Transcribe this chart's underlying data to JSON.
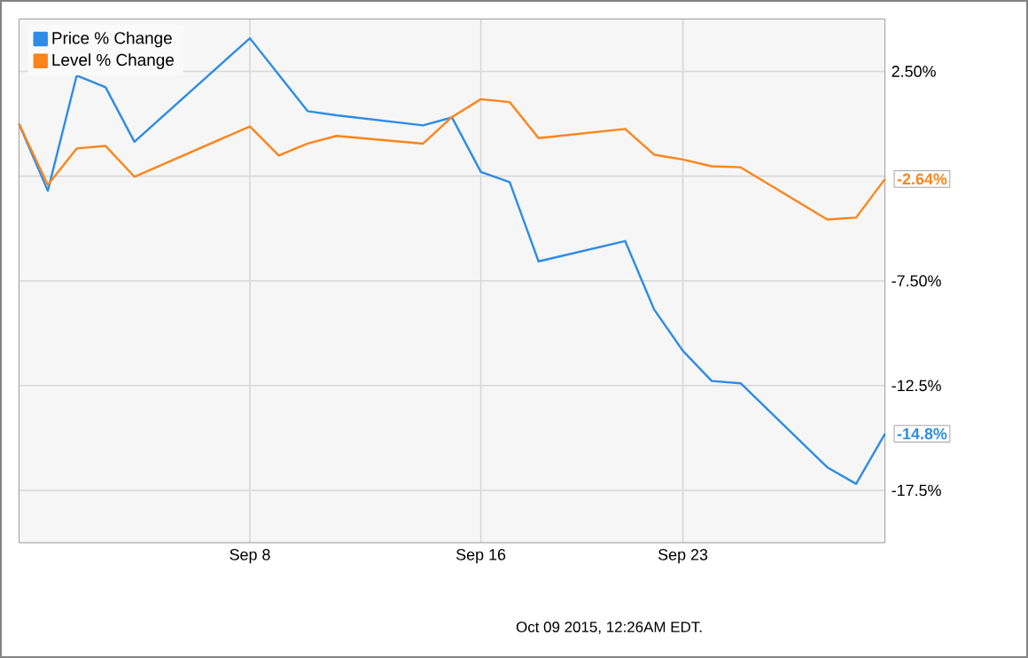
{
  "chart_data": {
    "type": "line",
    "x": [
      "2015-08-31",
      "2015-09-01",
      "2015-09-02",
      "2015-09-03",
      "2015-09-04",
      "2015-09-08",
      "2015-09-09",
      "2015-09-10",
      "2015-09-11",
      "2015-09-14",
      "2015-09-15",
      "2015-09-16",
      "2015-09-17",
      "2015-09-18",
      "2015-09-21",
      "2015-09-22",
      "2015-09-23",
      "2015-09-24",
      "2015-09-25",
      "2015-09-28",
      "2015-09-29",
      "2015-09-30"
    ],
    "series": [
      {
        "name": "Price % Change",
        "color": "#2d8ce6",
        "values": [
          0,
          -3.2,
          2.3,
          1.74,
          -0.86,
          4.08,
          2.34,
          0.6,
          0.4,
          -0.08,
          0.3,
          -2.3,
          -2.79,
          -6.57,
          -5.6,
          -8.86,
          -10.84,
          -12.28,
          -12.39,
          -16.4,
          -17.19,
          -14.8
        ],
        "value_labels": [
          null,
          null,
          null,
          null,
          null,
          null,
          null,
          null,
          null,
          null,
          null,
          null,
          null,
          null,
          null,
          null,
          null,
          null,
          null,
          null,
          null,
          "-14.8%"
        ]
      },
      {
        "name": "Level % Change",
        "color": "#ff8419",
        "values": [
          0,
          -2.92,
          -1.18,
          -1.06,
          -2.53,
          -0.13,
          -1.52,
          -0.95,
          -0.58,
          -0.95,
          0.32,
          1.17,
          1.03,
          -0.69,
          -0.25,
          -1.48,
          -1.71,
          -2.03,
          -2.08,
          -4.57,
          -4.48,
          -2.64
        ],
        "value_labels": [
          null,
          null,
          null,
          null,
          null,
          null,
          null,
          null,
          null,
          null,
          null,
          null,
          null,
          null,
          null,
          null,
          null,
          null,
          null,
          null,
          null,
          "-2.64%"
        ]
      }
    ],
    "xlim": [
      "2015-08-31",
      "2015-09-30"
    ],
    "xticks": [
      {
        "value": "2015-09-08",
        "label": "Sep 8"
      },
      {
        "value": "2015-09-16",
        "label": "Sep 16"
      },
      {
        "value": "2015-09-23",
        "label": "Sep 23"
      }
    ],
    "ylim": [
      -20,
      5
    ],
    "yticks": [
      {
        "value": 2.5,
        "label": "2.50%"
      },
      {
        "value": -2.5,
        "label": null
      },
      {
        "value": -7.5,
        "label": "-7.50%"
      },
      {
        "value": -12.5,
        "label": "-12.5%"
      },
      {
        "value": -17.5,
        "label": "-17.5%"
      }
    ],
    "grid": true,
    "legend": "top left",
    "annotations": [
      "Oct 09 2015, 12:26AM EDT."
    ]
  }
}
